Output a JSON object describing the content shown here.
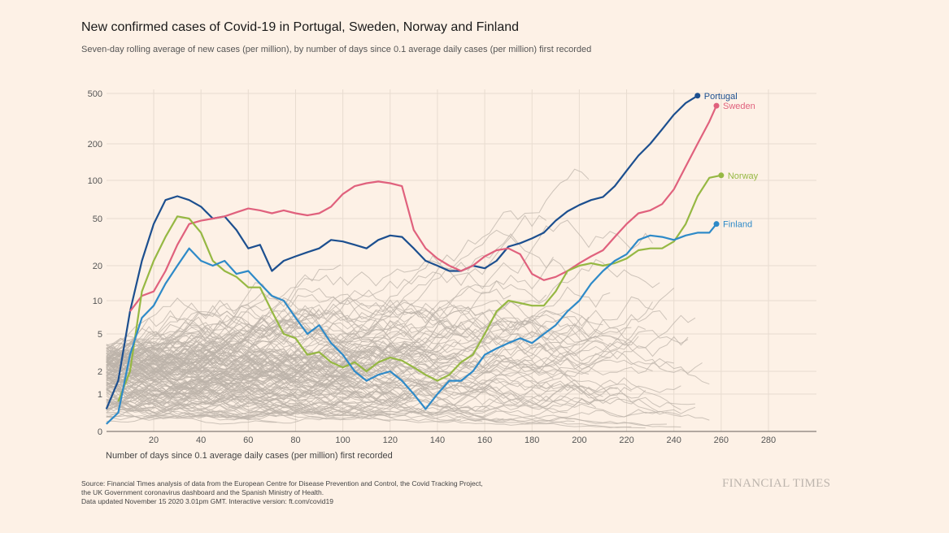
{
  "header": {
    "title": "New confirmed cases of Covid-19 in Portugal, Sweden, Norway and Finland",
    "subtitle": "Seven-day rolling average of new cases (per million), by number of days since 0.1 average daily cases (per million) first recorded"
  },
  "footer": {
    "source_lines": [
      "Source: Financial Times analysis of data from the European Centre for Disease Prevention and Control, the Covid Tracking Project,",
      "the UK Government coronavirus dashboard and the Spanish Ministry of Health.",
      "Data updated November 15 2020 3.01pm GMT. Interactive version: ft.com/covid19"
    ],
    "brand": "FINANCIAL TIMES"
  },
  "chart_data": {
    "type": "line",
    "xlabel": "Number of days since 0.1 average daily cases (per million) first recorded",
    "ylabel": "",
    "y_scale": "log",
    "x_ticks": [
      20,
      40,
      60,
      80,
      100,
      120,
      140,
      160,
      180,
      200,
      220,
      240,
      260,
      280
    ],
    "y_ticks": [
      0,
      1,
      2,
      5,
      10,
      20,
      50,
      100,
      200,
      500
    ],
    "grid": true,
    "background_series_color": "#bcb3aa",
    "series": [
      {
        "name": "Portugal",
        "color": "#1c4f8f",
        "x": [
          0,
          5,
          10,
          15,
          20,
          25,
          30,
          35,
          40,
          45,
          50,
          55,
          60,
          65,
          70,
          75,
          80,
          85,
          90,
          95,
          100,
          105,
          110,
          115,
          120,
          125,
          130,
          135,
          140,
          145,
          150,
          155,
          160,
          165,
          170,
          175,
          180,
          185,
          190,
          195,
          200,
          205,
          210,
          215,
          220,
          225,
          230,
          235,
          240,
          245,
          250
        ],
        "y": [
          0.6,
          1.5,
          8,
          22,
          45,
          70,
          75,
          70,
          62,
          50,
          52,
          40,
          28,
          30,
          18,
          22,
          24,
          26,
          28,
          33,
          32,
          30,
          28,
          33,
          36,
          35,
          28,
          22,
          20,
          18,
          18,
          20,
          19,
          22,
          29,
          31,
          34,
          38,
          48,
          57,
          64,
          70,
          74,
          90,
          120,
          160,
          200,
          260,
          340,
          420,
          480
        ]
      },
      {
        "name": "Sweden",
        "color": "#e0617d",
        "x": [
          10,
          15,
          20,
          25,
          30,
          35,
          40,
          45,
          50,
          55,
          60,
          65,
          70,
          75,
          80,
          85,
          90,
          95,
          100,
          105,
          110,
          115,
          120,
          125,
          130,
          135,
          140,
          145,
          150,
          155,
          160,
          165,
          170,
          175,
          180,
          185,
          190,
          195,
          200,
          205,
          210,
          215,
          220,
          225,
          230,
          235,
          240,
          245,
          250,
          255,
          258
        ],
        "y": [
          8,
          11,
          12,
          18,
          30,
          45,
          48,
          50,
          52,
          56,
          60,
          58,
          55,
          58,
          55,
          53,
          55,
          62,
          78,
          90,
          95,
          98,
          95,
          90,
          40,
          28,
          23,
          20,
          18,
          20,
          24,
          27,
          28,
          25,
          17,
          15,
          16,
          18,
          21,
          24,
          27,
          35,
          45,
          55,
          58,
          65,
          85,
          130,
          200,
          300,
          400
        ]
      },
      {
        "name": "Norway",
        "color": "#96b843",
        "x": [
          5,
          10,
          15,
          20,
          25,
          30,
          35,
          40,
          45,
          50,
          55,
          60,
          65,
          70,
          75,
          80,
          85,
          90,
          95,
          100,
          105,
          110,
          115,
          120,
          125,
          130,
          135,
          140,
          145,
          150,
          155,
          160,
          165,
          170,
          175,
          180,
          185,
          190,
          195,
          200,
          205,
          210,
          215,
          220,
          225,
          230,
          235,
          240,
          245,
          250,
          255,
          260
        ],
        "y": [
          0.8,
          2,
          12,
          22,
          35,
          52,
          50,
          38,
          22,
          18,
          16,
          13,
          13,
          8,
          5,
          4.5,
          3,
          3.2,
          2.5,
          2.2,
          2.5,
          2,
          2.5,
          2.8,
          2.6,
          2.2,
          1.8,
          1.5,
          1.8,
          2.5,
          3,
          5,
          8,
          10,
          9.5,
          9,
          9,
          12,
          18,
          20,
          21,
          20,
          21,
          23,
          27,
          28,
          28,
          32,
          45,
          75,
          105,
          110
        ]
      },
      {
        "name": "Finland",
        "color": "#2e8ac8",
        "x": [
          0,
          5,
          10,
          15,
          20,
          25,
          30,
          35,
          40,
          45,
          50,
          55,
          60,
          65,
          70,
          75,
          80,
          85,
          90,
          95,
          100,
          105,
          110,
          115,
          120,
          125,
          130,
          135,
          140,
          145,
          150,
          155,
          160,
          165,
          170,
          175,
          180,
          185,
          190,
          195,
          200,
          205,
          210,
          215,
          220,
          225,
          230,
          235,
          240,
          245,
          250,
          255,
          258
        ],
        "y": [
          0.2,
          0.5,
          3,
          7,
          9,
          14,
          20,
          28,
          22,
          20,
          22,
          17,
          18,
          14,
          11,
          10,
          7,
          5,
          6,
          4,
          3,
          2,
          1.5,
          1.8,
          2,
          1.5,
          1,
          0.6,
          1,
          1.5,
          1.5,
          2,
          3,
          3.5,
          4,
          4.5,
          4,
          5,
          6,
          8,
          10,
          14,
          18,
          22,
          25,
          33,
          36,
          35,
          33,
          36,
          38,
          38,
          45
        ]
      }
    ]
  }
}
